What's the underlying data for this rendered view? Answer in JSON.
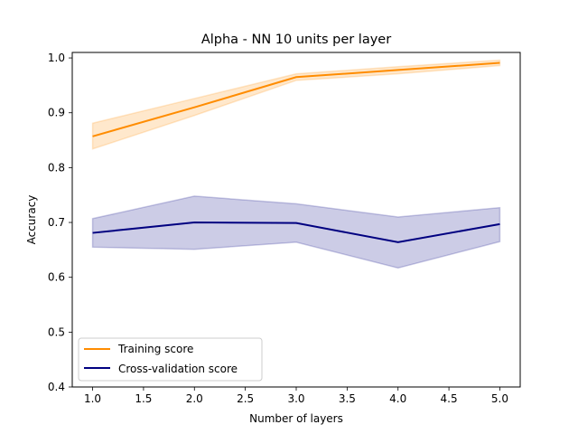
{
  "chart_data": {
    "type": "line",
    "title": "Alpha - NN 10 units per layer",
    "xlabel": "Number of layers",
    "ylabel": "Accuracy",
    "x": [
      1,
      2,
      3,
      4,
      5
    ],
    "xlim": [
      0.8,
      5.2
    ],
    "ylim": [
      0.4,
      1.01
    ],
    "xticks": [
      1.0,
      1.5,
      2.0,
      2.5,
      3.0,
      3.5,
      4.0,
      4.5,
      5.0
    ],
    "xtick_labels": [
      "1.0",
      "1.5",
      "2.0",
      "2.5",
      "3.0",
      "3.5",
      "4.0",
      "4.5",
      "5.0"
    ],
    "yticks": [
      0.4,
      0.5,
      0.6,
      0.7,
      0.8,
      0.9,
      1.0
    ],
    "ytick_labels": [
      "0.4",
      "0.5",
      "0.6",
      "0.7",
      "0.8",
      "0.9",
      "1.0"
    ],
    "grid": false,
    "legend_position": "lower-left",
    "series": [
      {
        "name": "Training score",
        "color": "#ff8c00",
        "values": [
          0.857,
          0.91,
          0.965,
          0.978,
          0.991
        ],
        "lower": [
          0.834,
          0.895,
          0.959,
          0.971,
          0.986
        ],
        "upper": [
          0.881,
          0.926,
          0.971,
          0.984,
          0.996
        ]
      },
      {
        "name": "Cross-validation score",
        "color": "#000080",
        "values": [
          0.681,
          0.7,
          0.699,
          0.664,
          0.697
        ],
        "lower": [
          0.655,
          0.651,
          0.664,
          0.617,
          0.665
        ],
        "upper": [
          0.707,
          0.748,
          0.734,
          0.71,
          0.727
        ]
      }
    ]
  }
}
